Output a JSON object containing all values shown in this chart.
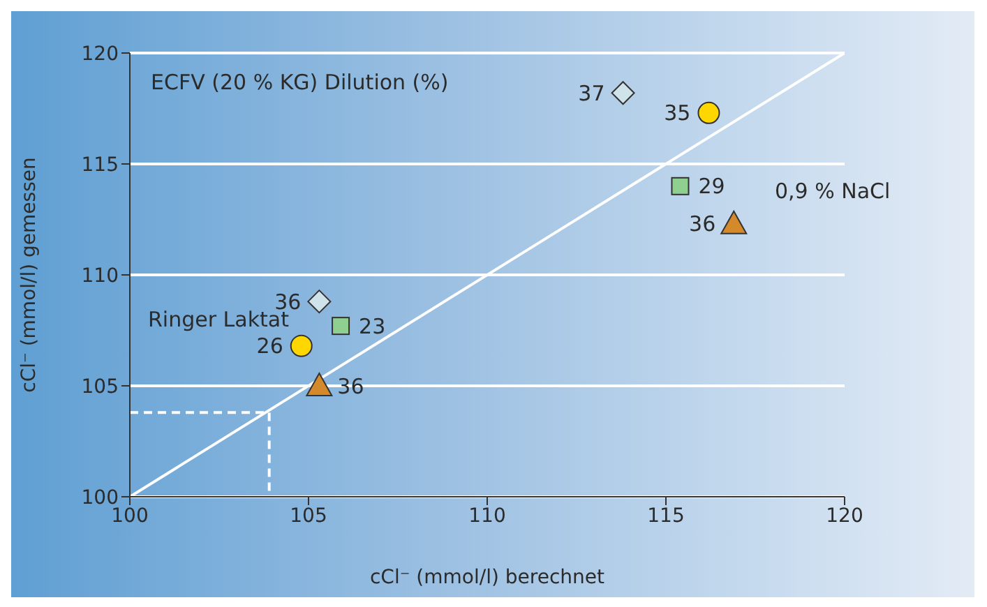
{
  "chart_data": {
    "type": "scatter",
    "xlabel": "cCl⁻ (mmol/l) berechnet",
    "ylabel": "cCl⁻ (mmol/l) gemessen",
    "xlim": [
      100,
      120
    ],
    "xticks": [
      100,
      105,
      110,
      115,
      120
    ],
    "ylim": [
      100,
      120
    ],
    "yticks": [
      100,
      105,
      110,
      115,
      120
    ],
    "grid": "y",
    "legend": false,
    "series": [
      {
        "marker": "diamond",
        "color": "#cfe3ea",
        "x": [
          105.3,
          113.8
        ],
        "values": [
          108.8,
          118.2
        ]
      },
      {
        "marker": "square",
        "color": "#8fcf8f",
        "x": [
          105.9,
          115.4
        ],
        "values": [
          107.7,
          114.0
        ]
      },
      {
        "marker": "circle",
        "color": "#ffd700",
        "x": [
          104.8,
          116.2
        ],
        "values": [
          106.8,
          117.3
        ]
      },
      {
        "marker": "triangle",
        "color": "#d48a2a",
        "x": [
          105.3,
          116.9
        ],
        "values": [
          105.0,
          112.3
        ]
      },
      {
        "type": "line",
        "marker": "none",
        "line_style": "solid",
        "color": "#ffffff",
        "x": [
          100,
          120
        ],
        "values": [
          100,
          120
        ]
      },
      {
        "type": "line",
        "marker": "none",
        "line_style": "dashed",
        "color": "#ffffff",
        "x": [
          100,
          103.9,
          103.9
        ],
        "values": [
          103.8,
          103.8,
          100
        ]
      }
    ],
    "annotations": [
      "ECFV (20 % KG) Dilution (%)",
      "Ringer Laktat",
      "0,9 % NaCl",
      {
        "text": "36",
        "x": 105.3,
        "y": 108.8
      },
      {
        "text": "37",
        "x": 113.8,
        "y": 118.2
      },
      {
        "text": "23",
        "x": 105.9,
        "y": 107.7
      },
      {
        "text": "29",
        "x": 115.4,
        "y": 114.0
      },
      {
        "text": "26",
        "x": 104.8,
        "y": 106.8
      },
      {
        "text": "35",
        "x": 116.2,
        "y": 117.3
      },
      {
        "text": "36",
        "x": 105.3,
        "y": 105.0
      },
      {
        "text": "36",
        "x": 116.9,
        "y": 112.3
      }
    ]
  }
}
